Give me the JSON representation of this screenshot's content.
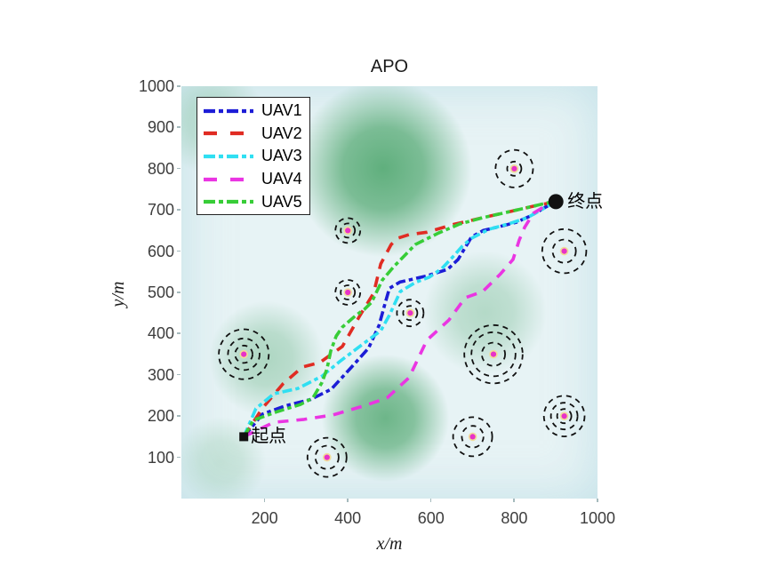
{
  "chart_data": {
    "type": "line",
    "title": "APO",
    "xlabel": "x/m",
    "ylabel": "y/m",
    "xlim": [
      0,
      1000
    ],
    "ylim": [
      0,
      1000
    ],
    "x_ticks": [
      200,
      400,
      600,
      800,
      1000
    ],
    "y_ticks": [
      100,
      200,
      300,
      400,
      500,
      600,
      700,
      800,
      900,
      1000
    ],
    "grid": false,
    "legend_position": "top-left",
    "background": {
      "base_color": "#e7f3f5",
      "blob_color": "#3e9e5f",
      "blobs": [
        {
          "x": 485,
          "y": 800,
          "r": 215,
          "alpha": 0.8
        },
        {
          "x": 490,
          "y": 195,
          "r": 155,
          "alpha": 0.72
        },
        {
          "x": 205,
          "y": 340,
          "r": 140,
          "alpha": 0.34
        },
        {
          "x": 730,
          "y": 450,
          "r": 150,
          "alpha": 0.3
        },
        {
          "x": 75,
          "y": 915,
          "r": 130,
          "alpha": 0.26
        },
        {
          "x": 95,
          "y": 90,
          "r": 110,
          "alpha": 0.2
        }
      ]
    },
    "series": [
      {
        "name": "UAV1",
        "color": "#1d1dd6",
        "style": "dashdot",
        "points": [
          [
            150,
            150
          ],
          [
            195,
            205
          ],
          [
            250,
            225
          ],
          [
            310,
            240
          ],
          [
            360,
            265
          ],
          [
            410,
            320
          ],
          [
            450,
            365
          ],
          [
            475,
            420
          ],
          [
            490,
            475
          ],
          [
            500,
            510
          ],
          [
            525,
            525
          ],
          [
            590,
            540
          ],
          [
            640,
            556
          ],
          [
            665,
            580
          ],
          [
            697,
            634
          ],
          [
            725,
            650
          ],
          [
            766,
            660
          ],
          [
            805,
            670
          ],
          [
            840,
            686
          ],
          [
            874,
            706
          ],
          [
            900,
            720
          ]
        ]
      },
      {
        "name": "UAV2",
        "color": "#e02c23",
        "style": "dash",
        "points": [
          [
            150,
            150
          ],
          [
            194,
            218
          ],
          [
            244,
            278
          ],
          [
            291,
            319
          ],
          [
            333,
            330
          ],
          [
            387,
            369
          ],
          [
            429,
            444
          ],
          [
            462,
            498
          ],
          [
            479,
            569
          ],
          [
            504,
            616
          ],
          [
            519,
            631
          ],
          [
            547,
            640
          ],
          [
            590,
            646
          ],
          [
            655,
            665
          ],
          [
            724,
            681
          ],
          [
            789,
            696
          ],
          [
            846,
            709
          ],
          [
            900,
            720
          ]
        ]
      },
      {
        "name": "UAV3",
        "color": "#2fdff2",
        "style": "dashdot",
        "points": [
          [
            150,
            150
          ],
          [
            179,
            218
          ],
          [
            222,
            254
          ],
          [
            280,
            267
          ],
          [
            338,
            297
          ],
          [
            380,
            332
          ],
          [
            434,
            373
          ],
          [
            479,
            407
          ],
          [
            500,
            445
          ],
          [
            526,
            502
          ],
          [
            562,
            524
          ],
          [
            596,
            537
          ],
          [
            626,
            558
          ],
          [
            654,
            588
          ],
          [
            675,
            612
          ],
          [
            697,
            631
          ],
          [
            739,
            653
          ],
          [
            789,
            667
          ],
          [
            831,
            681
          ],
          [
            868,
            702
          ],
          [
            900,
            720
          ]
        ]
      },
      {
        "name": "UAV4",
        "color": "#ea35e2",
        "style": "dash",
        "points": [
          [
            150,
            150
          ],
          [
            222,
            185
          ],
          [
            295,
            192
          ],
          [
            365,
            203
          ],
          [
            436,
            224
          ],
          [
            494,
            244
          ],
          [
            547,
            293
          ],
          [
            590,
            384
          ],
          [
            643,
            433
          ],
          [
            682,
            487
          ],
          [
            724,
            502
          ],
          [
            767,
            545
          ],
          [
            797,
            580
          ],
          [
            812,
            627
          ],
          [
            825,
            658
          ],
          [
            846,
            692
          ],
          [
            872,
            708
          ],
          [
            900,
            720
          ]
        ]
      },
      {
        "name": "UAV5",
        "color": "#37cd37",
        "style": "dashdot",
        "points": [
          [
            150,
            150
          ],
          [
            173,
            190
          ],
          [
            231,
            211
          ],
          [
            286,
            228
          ],
          [
            316,
            244
          ],
          [
            338,
            282
          ],
          [
            350,
            315
          ],
          [
            359,
            358
          ],
          [
            372,
            394
          ],
          [
            387,
            416
          ],
          [
            419,
            444
          ],
          [
            440,
            459
          ],
          [
            457,
            476
          ],
          [
            483,
            530
          ],
          [
            511,
            563
          ],
          [
            562,
            616
          ],
          [
            618,
            644
          ],
          [
            669,
            666
          ],
          [
            724,
            681
          ],
          [
            789,
            696
          ],
          [
            846,
            709
          ],
          [
            900,
            722
          ]
        ]
      }
    ],
    "obstacles": {
      "ring_color": "#111111",
      "dot_color": "#e832c8",
      "halo_color": "#f0dc9a",
      "items": [
        {
          "x": 800,
          "y": 800,
          "rings": [
            17,
            45
          ]
        },
        {
          "x": 920,
          "y": 600,
          "rings": [
            28,
            53
          ]
        },
        {
          "x": 400,
          "y": 650,
          "rings": [
            17,
            30
          ]
        },
        {
          "x": 400,
          "y": 500,
          "rings": [
            17,
            30
          ]
        },
        {
          "x": 550,
          "y": 450,
          "rings": [
            17,
            32
          ]
        },
        {
          "x": 150,
          "y": 350,
          "rings": [
            21,
            38,
            60
          ]
        },
        {
          "x": 750,
          "y": 350,
          "rings": [
            28,
            53,
            70
          ]
        },
        {
          "x": 920,
          "y": 200,
          "rings": [
            17,
            32,
            49
          ]
        },
        {
          "x": 700,
          "y": 150,
          "rings": [
            26,
            47
          ]
        },
        {
          "x": 350,
          "y": 100,
          "rings": [
            28,
            47
          ]
        }
      ]
    },
    "start_point": {
      "label": "起点",
      "x": 150,
      "y": 150,
      "marker": "square",
      "color": "#111111"
    },
    "end_point": {
      "label": "终点",
      "x": 900,
      "y": 720,
      "marker": "circle",
      "color": "#111111"
    }
  }
}
